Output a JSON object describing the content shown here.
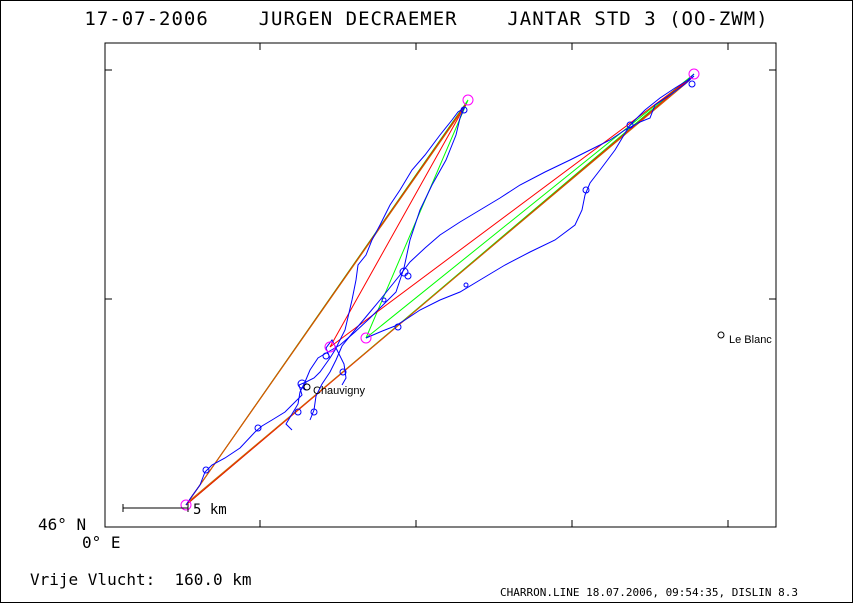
{
  "header": {
    "date": "17-07-2006",
    "pilot": "JURGEN DECRAEMER",
    "glider": "JANTAR STD 3 (OO-ZWM)"
  },
  "axes": {
    "lat_label": "46° N",
    "lon_label": "0° E"
  },
  "scale_label": "5 km",
  "places": [
    {
      "name": "Chauvigny"
    },
    {
      "name": "Le Blanc"
    }
  ],
  "flight": {
    "distance_label": "Vrije Vlucht:",
    "distance_value": "160.0 km"
  },
  "footer": "CHARRON.LINE 18.07.2006, 09:54:35, DISLIN 8.3",
  "colors": {
    "track": "#0000ff",
    "task_line": "#ff0000",
    "optimized_line": "#00ff00",
    "turnpoint": "#ff00ff",
    "final_leg": "#cc6600"
  }
}
